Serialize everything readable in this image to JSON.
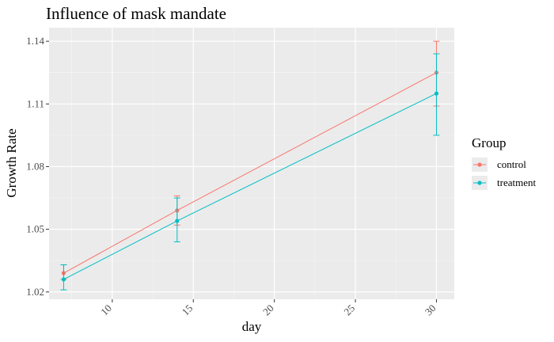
{
  "chart_data": {
    "type": "line",
    "title": "Influence of mask mandate",
    "xlabel": "day",
    "ylabel": "Growth Rate",
    "x": [
      7,
      14,
      30
    ],
    "xlim": [
      6.1,
      31.1
    ],
    "ylim": [
      1.0165,
      1.1465
    ],
    "xticks": [
      10,
      15,
      20,
      25,
      30
    ],
    "yticks": [
      1.02,
      1.05,
      1.08,
      1.11,
      1.14
    ],
    "ytick_labels": [
      "1.02",
      "1.05",
      "1.08",
      "1.11",
      "1.14"
    ],
    "xtick_rotation": 45,
    "grid": true,
    "legend": {
      "title": "Group",
      "position": "right"
    },
    "series": [
      {
        "name": "control",
        "color": "#F8766D",
        "values": [
          1.029,
          1.059,
          1.125
        ],
        "err_low": [
          1.026,
          1.052,
          1.109
        ],
        "err_high": [
          1.033,
          1.066,
          1.14
        ]
      },
      {
        "name": "treatment",
        "color": "#00BFC4",
        "values": [
          1.026,
          1.054,
          1.115
        ],
        "err_low": [
          1.021,
          1.044,
          1.095
        ],
        "err_high": [
          1.033,
          1.065,
          1.134
        ]
      }
    ]
  }
}
